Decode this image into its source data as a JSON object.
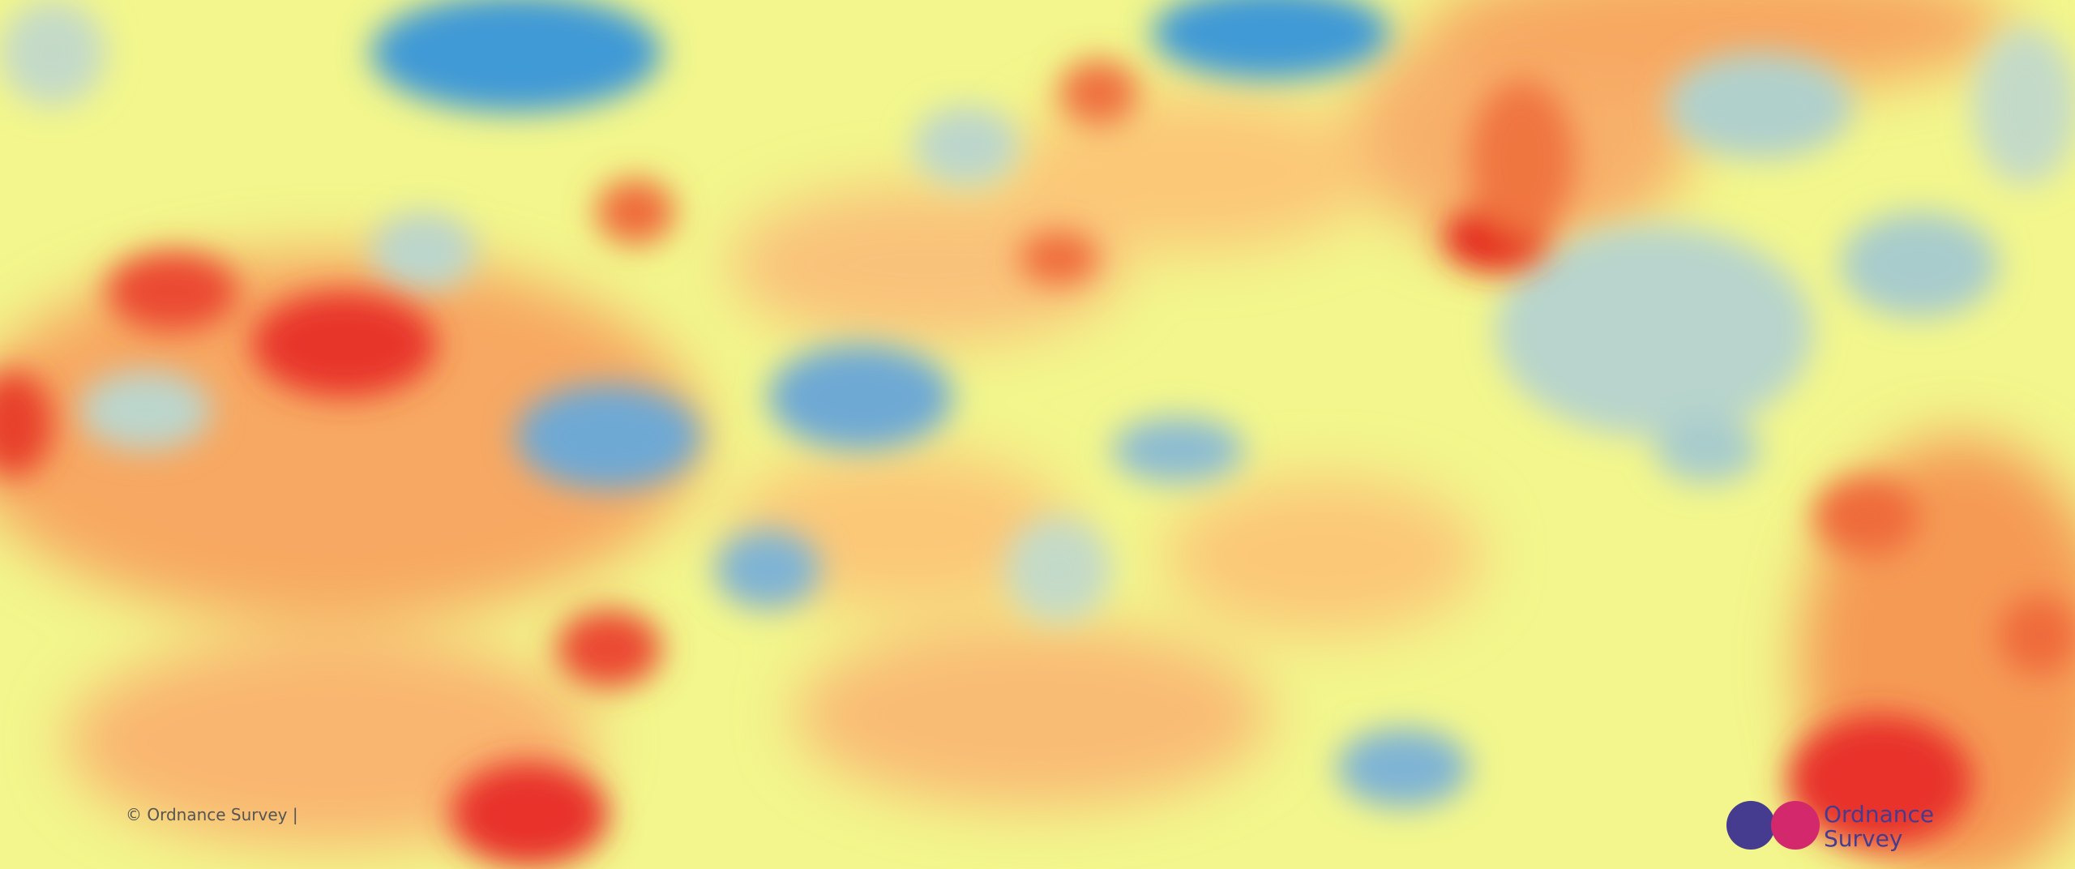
{
  "attribution": "© Ordnance Survey |",
  "logo": {
    "line1": "Ordnance",
    "line2": "Survey"
  }
}
